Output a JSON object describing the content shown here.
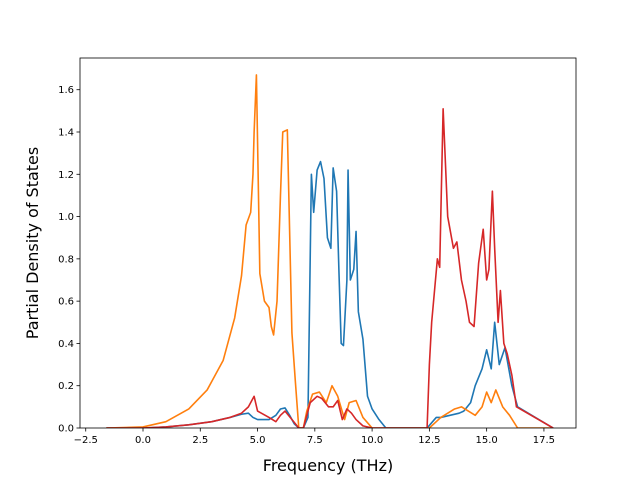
{
  "chart_data": {
    "type": "line",
    "title": "",
    "xlabel": "Frequency (THz)",
    "ylabel": "Partial Density of States",
    "xlim": [
      -2.75,
      18.9
    ],
    "ylim": [
      0.0,
      1.75
    ],
    "xticks": [
      -2.5,
      0.0,
      2.5,
      5.0,
      7.5,
      10.0,
      12.5,
      15.0,
      17.5
    ],
    "xtick_labels": [
      "−2.5",
      "0.0",
      "2.5",
      "5.0",
      "7.5",
      "10.0",
      "12.5",
      "15.0",
      "17.5"
    ],
    "yticks": [
      0.0,
      0.2,
      0.4,
      0.6,
      0.8,
      1.0,
      1.2,
      1.4,
      1.6
    ],
    "ytick_labels": [
      "0.0",
      "0.2",
      "0.4",
      "0.6",
      "0.8",
      "1.0",
      "1.2",
      "1.4",
      "1.6"
    ],
    "grid": false,
    "legend": false,
    "series": [
      {
        "color": "#1f77b4",
        "x": [
          -1.6,
          0.0,
          1.0,
          2.0,
          3.0,
          3.8,
          4.3,
          4.6,
          4.8,
          5.0,
          5.5,
          5.8,
          6.0,
          6.2,
          6.4,
          6.6,
          6.8,
          7.0,
          7.2,
          7.35,
          7.45,
          7.6,
          7.75,
          7.9,
          8.05,
          8.2,
          8.3,
          8.45,
          8.55,
          8.65,
          8.75,
          8.9,
          8.95,
          9.05,
          9.2,
          9.3,
          9.4,
          9.6,
          9.8,
          10.0,
          10.3,
          10.6,
          12.4,
          12.8,
          13.0,
          13.4,
          13.8,
          14.0,
          14.3,
          14.5,
          14.8,
          15.0,
          15.2,
          15.35,
          15.55,
          15.8,
          16.1,
          16.35,
          17.9
        ],
        "y": [
          0.0,
          0.0,
          0.005,
          0.015,
          0.03,
          0.05,
          0.065,
          0.07,
          0.05,
          0.04,
          0.04,
          0.06,
          0.09,
          0.095,
          0.06,
          0.02,
          0.0,
          0.0,
          0.05,
          1.2,
          1.02,
          1.22,
          1.26,
          1.18,
          0.9,
          0.85,
          1.23,
          1.12,
          0.75,
          0.4,
          0.39,
          0.7,
          1.22,
          0.7,
          0.75,
          0.93,
          0.55,
          0.42,
          0.15,
          0.09,
          0.04,
          0.0,
          0.0,
          0.05,
          0.05,
          0.06,
          0.07,
          0.08,
          0.12,
          0.2,
          0.28,
          0.37,
          0.28,
          0.5,
          0.3,
          0.38,
          0.2,
          0.1,
          0.0
        ]
      },
      {
        "color": "#ff7f0e",
        "x": [
          -1.6,
          0.0,
          1.0,
          2.0,
          2.8,
          3.5,
          4.0,
          4.3,
          4.5,
          4.7,
          4.8,
          4.85,
          4.95,
          5.1,
          5.3,
          5.5,
          5.6,
          5.7,
          5.85,
          6.0,
          6.1,
          6.3,
          6.5,
          6.65,
          6.8,
          7.0,
          7.15,
          7.4,
          7.7,
          8.0,
          8.25,
          8.5,
          8.8,
          9.0,
          9.3,
          9.6,
          10.0,
          10.5,
          12.5,
          13.0,
          13.3,
          13.6,
          13.9,
          14.2,
          14.5,
          14.8,
          15.0,
          15.2,
          15.4,
          15.7,
          16.0,
          16.35,
          17.9
        ],
        "y": [
          0.0,
          0.005,
          0.03,
          0.09,
          0.18,
          0.32,
          0.52,
          0.72,
          0.96,
          1.02,
          1.2,
          1.4,
          1.67,
          0.73,
          0.6,
          0.57,
          0.48,
          0.44,
          0.6,
          1.1,
          1.4,
          1.41,
          0.45,
          0.22,
          0.0,
          0.0,
          0.08,
          0.16,
          0.17,
          0.12,
          0.2,
          0.15,
          0.04,
          0.12,
          0.13,
          0.05,
          0.0,
          0.0,
          0.0,
          0.05,
          0.07,
          0.09,
          0.1,
          0.08,
          0.06,
          0.1,
          0.17,
          0.12,
          0.18,
          0.1,
          0.06,
          0.0,
          0.0
        ]
      },
      {
        "color": "#d62728",
        "x": [
          -1.6,
          0.0,
          1.0,
          2.0,
          3.0,
          3.8,
          4.3,
          4.6,
          4.8,
          4.85,
          5.0,
          5.5,
          5.8,
          6.0,
          6.2,
          6.5,
          6.8,
          7.0,
          7.3,
          7.6,
          7.8,
          8.1,
          8.3,
          8.5,
          8.7,
          8.9,
          9.1,
          9.3,
          9.6,
          10.0,
          10.5,
          12.4,
          12.5,
          12.6,
          12.85,
          12.95,
          13.1,
          13.3,
          13.55,
          13.7,
          13.9,
          14.1,
          14.25,
          14.45,
          14.65,
          14.85,
          15.0,
          15.1,
          15.25,
          15.35,
          15.5,
          15.6,
          15.75,
          15.9,
          16.1,
          16.3,
          17.9
        ],
        "y": [
          0.0,
          0.0,
          0.005,
          0.015,
          0.03,
          0.05,
          0.07,
          0.1,
          0.14,
          0.15,
          0.08,
          0.05,
          0.03,
          0.06,
          0.08,
          0.04,
          0.0,
          0.0,
          0.12,
          0.15,
          0.14,
          0.1,
          0.1,
          0.13,
          0.04,
          0.09,
          0.07,
          0.04,
          0.01,
          0.0,
          0.0,
          0.0,
          0.3,
          0.5,
          0.8,
          0.76,
          1.51,
          1.0,
          0.85,
          0.88,
          0.7,
          0.6,
          0.5,
          0.48,
          0.78,
          0.94,
          0.7,
          0.75,
          1.12,
          0.85,
          0.5,
          0.65,
          0.4,
          0.35,
          0.25,
          0.1,
          0.0
        ]
      }
    ]
  }
}
